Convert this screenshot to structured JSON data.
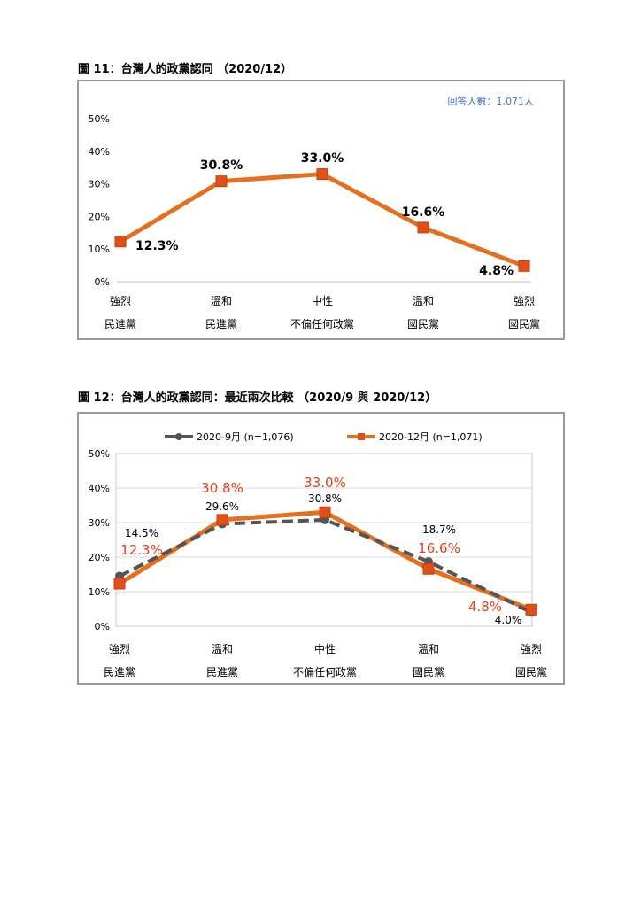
{
  "figure11": {
    "title": "圖 11：台灣人的政黨認同 （2020/12）",
    "note": "回答人數：1,071人",
    "chart_data": {
      "type": "line",
      "categories": [
        [
          "強烈",
          "民進黨"
        ],
        [
          "溫和",
          "民進黨"
        ],
        [
          "中性",
          "不偏任何政黨"
        ],
        [
          "溫和",
          "國民黨"
        ],
        [
          "強烈",
          "國民黨"
        ]
      ],
      "series": [
        {
          "name": "",
          "values": [
            12.3,
            30.8,
            33.0,
            16.6,
            4.8
          ],
          "labels": [
            "12.3%",
            "30.8%",
            "33.0%",
            "16.6%",
            "4.8%"
          ],
          "color": "#e2701f"
        }
      ],
      "yticks": [
        "0%",
        "10%",
        "20%",
        "30%",
        "40%",
        "50%"
      ],
      "ylim": [
        0,
        50
      ],
      "grid": false
    }
  },
  "figure12": {
    "title": "圖 12：台灣人的政黨認同：最近兩次比較 （2020/9 與 2020/12）",
    "chart_data": {
      "type": "line",
      "categories": [
        [
          "強烈",
          "民進黨"
        ],
        [
          "溫和",
          "民進黨"
        ],
        [
          "中性",
          "不偏任何政黨"
        ],
        [
          "溫和",
          "國民黨"
        ],
        [
          "強烈",
          "國民黨"
        ]
      ],
      "series": [
        {
          "name": "2020-9月 (n=1,076)",
          "values": [
            14.5,
            29.6,
            30.8,
            18.7,
            4.0
          ],
          "labels": [
            "14.5%",
            "29.6%",
            "30.8%",
            "18.7%",
            "4.0%"
          ],
          "color": "#555555",
          "style": "dashed"
        },
        {
          "name": "2020-12月 (n=1,071)",
          "values": [
            12.3,
            30.8,
            33.0,
            16.6,
            4.8
          ],
          "labels": [
            "12.3%",
            "30.8%",
            "33.0%",
            "16.6%",
            "4.8%"
          ],
          "color": "#e2701f",
          "label_color": "#e0401a",
          "style": "solid"
        }
      ],
      "yticks": [
        "0%",
        "10%",
        "20%",
        "30%",
        "40%",
        "50%"
      ],
      "ylim": [
        0,
        50
      ],
      "legend": "top",
      "grid": true
    }
  }
}
